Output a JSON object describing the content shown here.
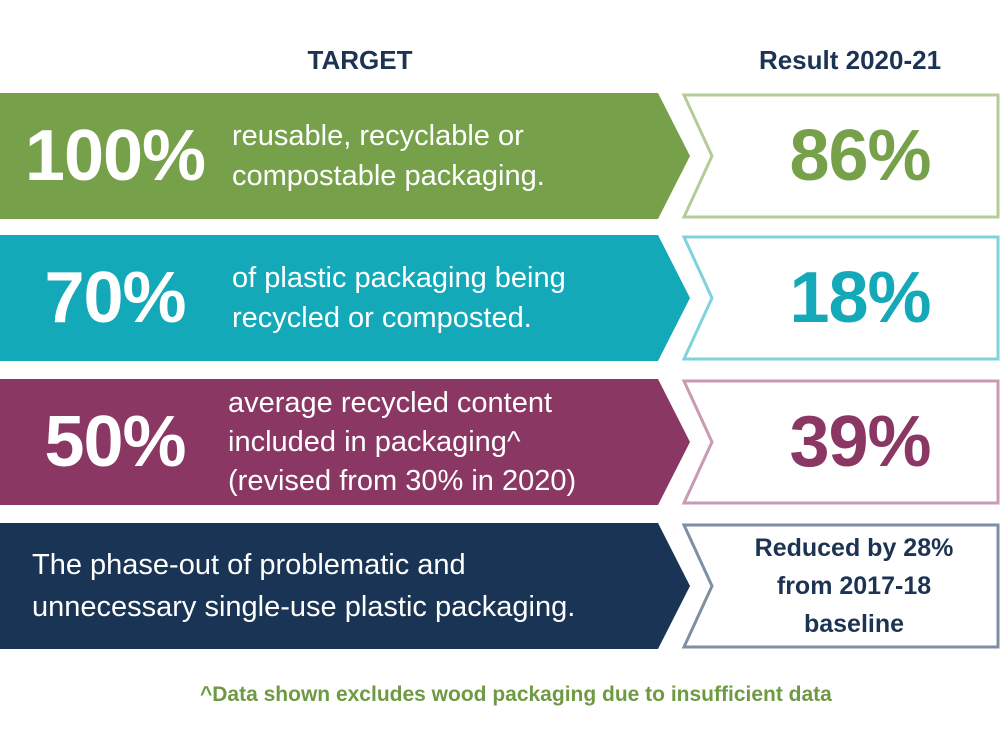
{
  "headers": {
    "target": "TARGET",
    "result": "Result 2020-21"
  },
  "colors": {
    "green": "#76a04a",
    "teal": "#13a9b8",
    "plum": "#8a3763",
    "navy": "#193454",
    "green_border": "#b5cc99",
    "teal_border": "#7fd3db",
    "plum_border": "#c99ab3",
    "navy_border": "#7f8fa3"
  },
  "rows": [
    {
      "target_pct": "100%",
      "desc_lines": [
        "reusable, recyclable or",
        "compostable packaging."
      ],
      "result": "86%"
    },
    {
      "target_pct": "70%",
      "desc_lines": [
        "of plastic packaging being",
        "recycled or composted."
      ],
      "result": "18%"
    },
    {
      "target_pct": "50%",
      "desc_lines": [
        "average recycled content",
        "included in packaging^",
        "(revised from 30% in 2020)"
      ],
      "result": "39%"
    },
    {
      "desc_lines": [
        "The phase-out of problematic and",
        "unnecessary single-use plastic packaging."
      ],
      "result_lines": [
        "Reduced by 28%",
        "from 2017-18",
        "baseline"
      ]
    }
  ],
  "footnote": "^Data shown excludes wood packaging due to insufficient data"
}
